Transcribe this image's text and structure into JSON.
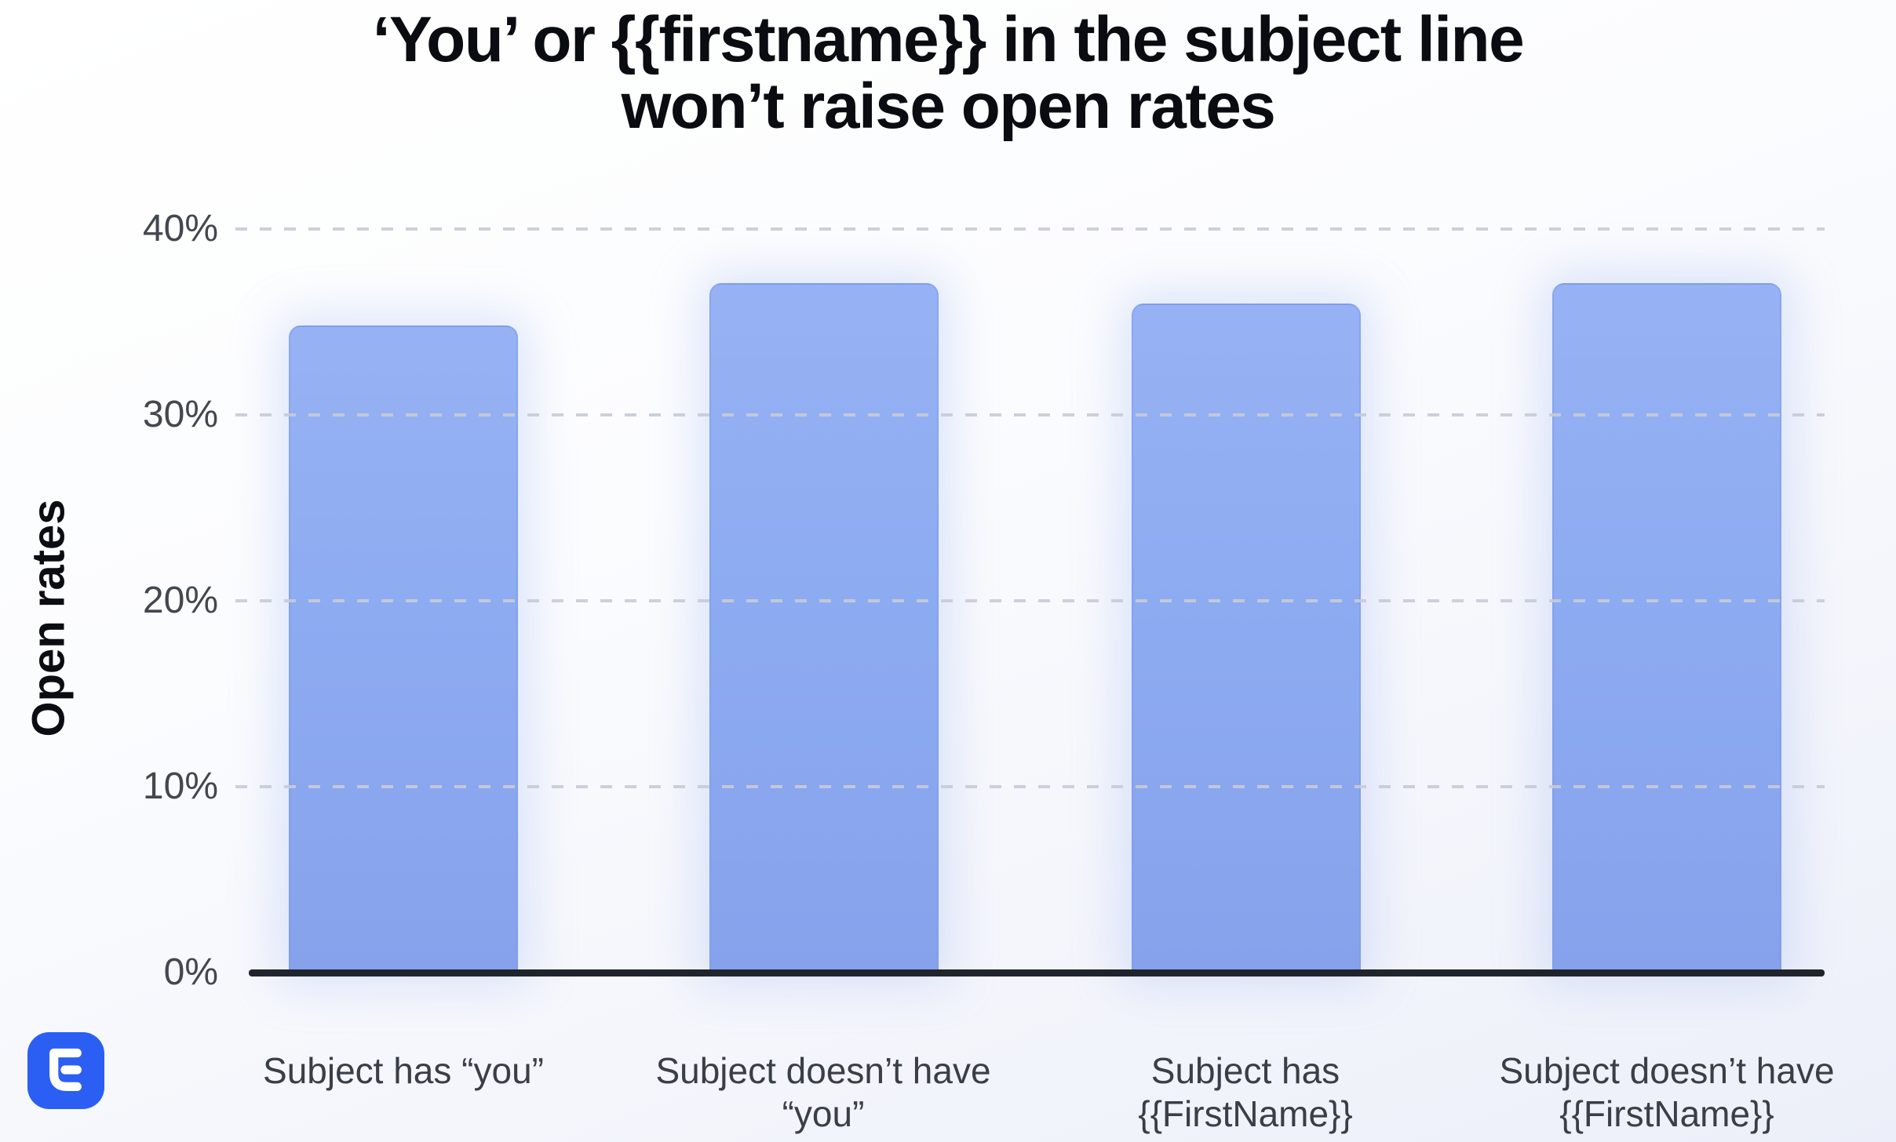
{
  "title": {
    "line1": "‘You’ or {{firstname}} in the subject line",
    "line2": "won’t raise open rates"
  },
  "y_axis": {
    "label": "Open rates",
    "ticks": [
      "40%",
      "30%",
      "20%",
      "10%",
      "0%"
    ]
  },
  "chart_data": {
    "type": "bar",
    "title": "‘You’ or {{firstname}} in the subject line won’t raise open rates",
    "categories": [
      "Subject has “you”",
      "Subject doesn’t have “you”",
      "Subject has {{FirstName}}",
      "Subject doesn’t have {{FirstName}}"
    ],
    "values": [
      34.8,
      37.1,
      36.0,
      37.1
    ],
    "unit": "%",
    "xlabel": "",
    "ylabel": "Open rates",
    "ylim": [
      0,
      40
    ],
    "ytick_values": [
      0,
      10,
      20,
      30,
      40
    ],
    "grid": "horizontal-dashed",
    "legend": "none",
    "bar_color": "#8DABF1"
  },
  "colors": {
    "bar_fill_top": "#97B2F4",
    "bar_fill_bottom": "#86A2EC",
    "gridline": "#C7CBD6",
    "axis_line": "#20242D",
    "tick_text": "#43474F",
    "category_text": "#3A3E47",
    "title_text": "#0A0C11",
    "logo_blue": "#2B5FF3",
    "background": "#FAFBFE"
  },
  "logo": {
    "name": "lemlist-logo-mark"
  }
}
